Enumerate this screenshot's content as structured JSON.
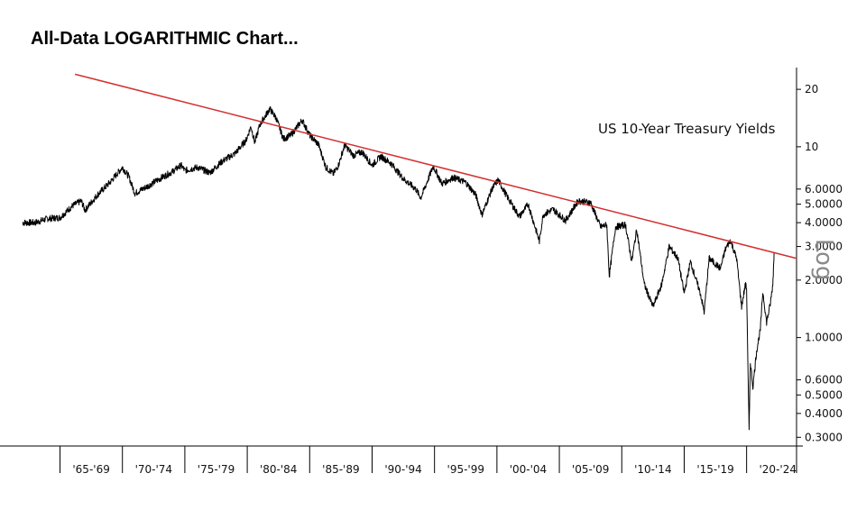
{
  "heading": "All-Data LOGARITHMIC Chart...",
  "chart_data": {
    "type": "line",
    "scale": "log",
    "series_label": "US 10-Year Treasury Yields",
    "scale_label": "Log",
    "x_categories": [
      "'65-'69",
      "'70-'74",
      "'75-'79",
      "'80-'84",
      "'85-'89",
      "'90-'94",
      "'95-'99",
      "'00-'04",
      "'05-'09",
      "'10-'14",
      "'15-'19",
      "'20-'24"
    ],
    "y_ticks": [
      {
        "value": 20,
        "label": "20"
      },
      {
        "value": 10,
        "label": "10"
      },
      {
        "value": 6,
        "label": "6.0000"
      },
      {
        "value": 5,
        "label": "5.0000"
      },
      {
        "value": 4,
        "label": "4.0000"
      },
      {
        "value": 3,
        "label": "3.0000"
      },
      {
        "value": 2,
        "label": "2.0000"
      },
      {
        "value": 1,
        "label": "1.0000"
      },
      {
        "value": 0.6,
        "label": "0.6000"
      },
      {
        "value": 0.5,
        "label": "0.5000"
      },
      {
        "value": 0.4,
        "label": "0.4000"
      },
      {
        "value": 0.3,
        "label": "0.3000"
      }
    ],
    "ylim": [
      0.27,
      26
    ],
    "xlim": [
      1962.0,
      2024.0
    ],
    "series": [
      {
        "name": "US 10-Year Treasury Yields",
        "points": [
          [
            1962.0,
            4.0
          ],
          [
            1963.0,
            4.0
          ],
          [
            1964.0,
            4.2
          ],
          [
            1965.0,
            4.25
          ],
          [
            1966.0,
            4.9
          ],
          [
            1966.7,
            5.2
          ],
          [
            1967.0,
            4.65
          ],
          [
            1968.0,
            5.6
          ],
          [
            1969.0,
            6.5
          ],
          [
            1970.0,
            7.8
          ],
          [
            1970.5,
            7.0
          ],
          [
            1971.0,
            5.7
          ],
          [
            1972.0,
            6.2
          ],
          [
            1973.0,
            6.8
          ],
          [
            1974.0,
            7.4
          ],
          [
            1974.7,
            8.0
          ],
          [
            1975.0,
            7.5
          ],
          [
            1976.0,
            7.8
          ],
          [
            1977.0,
            7.3
          ],
          [
            1978.0,
            8.4
          ],
          [
            1979.0,
            9.2
          ],
          [
            1979.9,
            10.8
          ],
          [
            1980.3,
            12.8
          ],
          [
            1980.6,
            10.5
          ],
          [
            1981.0,
            13.0
          ],
          [
            1981.8,
            15.8
          ],
          [
            1982.3,
            14.2
          ],
          [
            1982.9,
            11.0
          ],
          [
            1983.5,
            11.5
          ],
          [
            1984.4,
            13.8
          ],
          [
            1985.0,
            11.5
          ],
          [
            1985.7,
            10.3
          ],
          [
            1986.3,
            7.8
          ],
          [
            1986.9,
            7.2
          ],
          [
            1987.3,
            8.0
          ],
          [
            1987.8,
            10.2
          ],
          [
            1988.5,
            9.0
          ],
          [
            1989.2,
            9.4
          ],
          [
            1990.0,
            8.0
          ],
          [
            1990.7,
            8.9
          ],
          [
            1991.5,
            8.2
          ],
          [
            1992.5,
            6.8
          ],
          [
            1993.5,
            6.0
          ],
          [
            1993.9,
            5.4
          ],
          [
            1994.9,
            7.9
          ],
          [
            1995.6,
            6.4
          ],
          [
            1996.5,
            6.9
          ],
          [
            1997.5,
            6.5
          ],
          [
            1998.3,
            5.6
          ],
          [
            1998.8,
            4.4
          ],
          [
            1999.6,
            6.0
          ],
          [
            2000.1,
            6.7
          ],
          [
            2000.8,
            5.5
          ],
          [
            2001.8,
            4.3
          ],
          [
            2002.5,
            5.0
          ],
          [
            2003.4,
            3.2
          ],
          [
            2003.7,
            4.4
          ],
          [
            2004.5,
            4.7
          ],
          [
            2005.5,
            4.1
          ],
          [
            2006.5,
            5.2
          ],
          [
            2007.5,
            5.1
          ],
          [
            2008.3,
            3.8
          ],
          [
            2008.8,
            3.9
          ],
          [
            2009.0,
            2.1
          ],
          [
            2009.5,
            3.8
          ],
          [
            2010.3,
            3.9
          ],
          [
            2010.8,
            2.5
          ],
          [
            2011.2,
            3.7
          ],
          [
            2011.8,
            1.9
          ],
          [
            2012.5,
            1.45
          ],
          [
            2013.2,
            1.9
          ],
          [
            2013.8,
            3.0
          ],
          [
            2014.5,
            2.6
          ],
          [
            2015.0,
            1.7
          ],
          [
            2015.5,
            2.5
          ],
          [
            2016.3,
            1.7
          ],
          [
            2016.6,
            1.36
          ],
          [
            2017.0,
            2.6
          ],
          [
            2017.9,
            2.3
          ],
          [
            2018.3,
            2.9
          ],
          [
            2018.7,
            3.24
          ],
          [
            2019.2,
            2.6
          ],
          [
            2019.6,
            1.45
          ],
          [
            2019.9,
            1.9
          ],
          [
            2020.0,
            1.8
          ],
          [
            2020.2,
            0.32
          ],
          [
            2020.3,
            0.75
          ],
          [
            2020.5,
            0.55
          ],
          [
            2020.8,
            0.85
          ],
          [
            2021.1,
            1.1
          ],
          [
            2021.3,
            1.74
          ],
          [
            2021.6,
            1.2
          ],
          [
            2021.9,
            1.5
          ],
          [
            2022.1,
            1.9
          ],
          [
            2022.2,
            2.8
          ]
        ]
      },
      {
        "name": "Trendline",
        "color": "#d32f2f",
        "points": [
          [
            1966.2,
            24.0
          ],
          [
            2024.0,
            2.6
          ]
        ]
      }
    ]
  }
}
